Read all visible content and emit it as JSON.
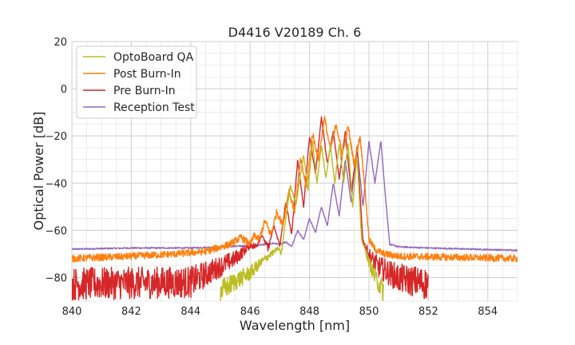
{
  "chart_data": {
    "type": "line",
    "title": "D4416 V20189 Ch. 6",
    "xlabel": "Wavelength [nm]",
    "ylabel": "Optical Power [dB]",
    "xlim": [
      840,
      855
    ],
    "ylim": [
      -90,
      20
    ],
    "x_ticks": [
      840,
      842,
      844,
      846,
      848,
      850,
      852,
      854
    ],
    "y_ticks": [
      20,
      0,
      -20,
      -40,
      -60,
      -80
    ],
    "x_tick_labels": [
      "840",
      "842",
      "844",
      "846",
      "848",
      "850",
      "852",
      "854"
    ],
    "y_tick_labels": [
      "20",
      "0",
      "−20",
      "−40",
      "−60",
      "−80"
    ],
    "grid": true,
    "minor_grid": true,
    "legend_position": "upper-left",
    "series": [
      {
        "name": "OptoBoard QA",
        "color": "#bcbd22",
        "noise_floor": -89,
        "x": [
          845.0,
          845.5,
          846.0,
          846.3,
          846.6,
          846.8,
          846.95,
          847.05,
          847.15,
          847.35,
          847.55,
          847.65,
          847.8,
          847.95,
          848.1,
          848.25,
          848.4,
          848.55,
          848.7,
          848.85,
          849.0,
          849.15,
          849.3,
          849.45,
          849.6,
          849.75,
          849.9,
          850.0,
          850.2,
          850.5
        ],
        "values": [
          -89,
          -84,
          -80,
          -76,
          -72,
          -70,
          -68,
          -71,
          -60,
          -41,
          -49,
          -40,
          -28,
          -43,
          -22,
          -40,
          -24,
          -38,
          -24,
          -40,
          -23,
          -40,
          -23,
          -50,
          -28,
          -64,
          -70,
          -75,
          -82,
          -89
        ]
      },
      {
        "name": "Post Burn-In",
        "color": "#ff7f0e",
        "noise_floor": -72,
        "x": [
          840.0,
          842.0,
          843.5,
          844.5,
          845.3,
          845.7,
          846.0,
          846.15,
          846.3,
          846.5,
          846.7,
          846.9,
          847.1,
          847.3,
          847.5,
          847.7,
          847.9,
          848.1,
          848.3,
          848.5,
          848.7,
          848.9,
          849.1,
          849.3,
          849.5,
          849.7,
          849.85,
          850.0,
          850.2,
          850.5,
          851.0,
          855.0
        ],
        "values": [
          -72,
          -71,
          -70,
          -69,
          -66,
          -63,
          -66,
          -62,
          -64,
          -56,
          -62,
          -52,
          -58,
          -43,
          -52,
          -30,
          -42,
          -19,
          -30,
          -12,
          -26,
          -15,
          -28,
          -16,
          -32,
          -20,
          -40,
          -64,
          -68,
          -70,
          -71,
          -72
        ]
      },
      {
        "name": "Pre Burn-In",
        "color": "#d62728",
        "noise_floor": -87,
        "x": [
          840.0,
          844.0,
          845.0,
          845.5,
          845.8,
          846.0,
          846.2,
          846.4,
          846.6,
          846.8,
          847.0,
          847.2,
          847.4,
          847.6,
          847.8,
          848.0,
          848.2,
          848.4,
          848.6,
          848.8,
          849.0,
          849.2,
          849.4,
          849.6,
          849.8,
          850.0,
          850.3,
          851.0,
          852.0
        ],
        "values": [
          -87,
          -86,
          -78,
          -74,
          -70,
          -67,
          -68,
          -62,
          -69,
          -58,
          -67,
          -48,
          -62,
          -30,
          -50,
          -20,
          -36,
          -12,
          -32,
          -18,
          -38,
          -18,
          -44,
          -25,
          -65,
          -72,
          -78,
          -84,
          -87
        ]
      },
      {
        "name": "Reception Test",
        "color": "#9467bd",
        "noise_floor": -68,
        "x": [
          840.0,
          842.0,
          844.0,
          845.0,
          846.0,
          846.5,
          846.8,
          847.0,
          847.2,
          847.4,
          847.6,
          847.8,
          848.0,
          848.2,
          848.4,
          848.6,
          848.8,
          849.0,
          849.2,
          849.4,
          849.6,
          849.8,
          850.0,
          850.2,
          850.4,
          850.55,
          850.7,
          851.0,
          852.0,
          855.0
        ],
        "values": [
          -68,
          -67.5,
          -67.5,
          -67,
          -66.5,
          -66,
          -65.5,
          -66,
          -65,
          -67,
          -60,
          -64,
          -55,
          -61,
          -50,
          -58,
          -40,
          -54,
          -30,
          -48,
          -25,
          -50,
          -22,
          -40,
          -22,
          -45,
          -66,
          -67,
          -67.5,
          -68.5
        ]
      }
    ]
  }
}
